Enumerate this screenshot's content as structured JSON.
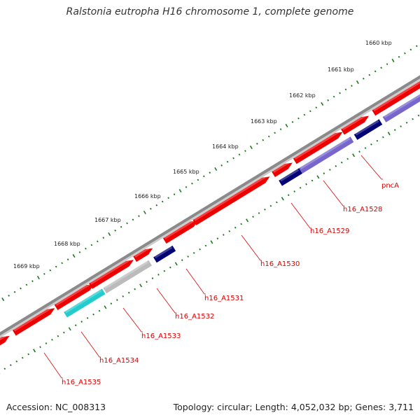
{
  "title": "Ralstonia eutropha H16 chromosome 1, complete genome",
  "footer": {
    "accession": "Accession: NC_008313",
    "summary": "Topology: circular; Length: 4,052,032 bp; Genes: 3,711"
  },
  "colors": {
    "backbone": "#8a8a8a",
    "tick": "#1a7a1a",
    "label": "#dd0000",
    "forward_gene": "#ee0000",
    "reverse_navy": "#000077",
    "reverse_purple": "#7766cc",
    "reverse_gray": "#bbbbbb",
    "reverse_cyan": "#22cccc"
  },
  "scale_labels": [
    "1660 kbp",
    "1661 kbp",
    "1662 kbp",
    "1663 kbp",
    "1664 kbp",
    "1665 kbp",
    "1666 kbp",
    "1667 kbp",
    "1668 kbp",
    "1669 kbp"
  ],
  "gene_labels": [
    "pncA",
    "h16_A1528",
    "h16_A1529",
    "h16_A1530",
    "h16_A1531",
    "h16_A1532",
    "h16_A1533",
    "h16_A1534",
    "h16_A1535"
  ]
}
